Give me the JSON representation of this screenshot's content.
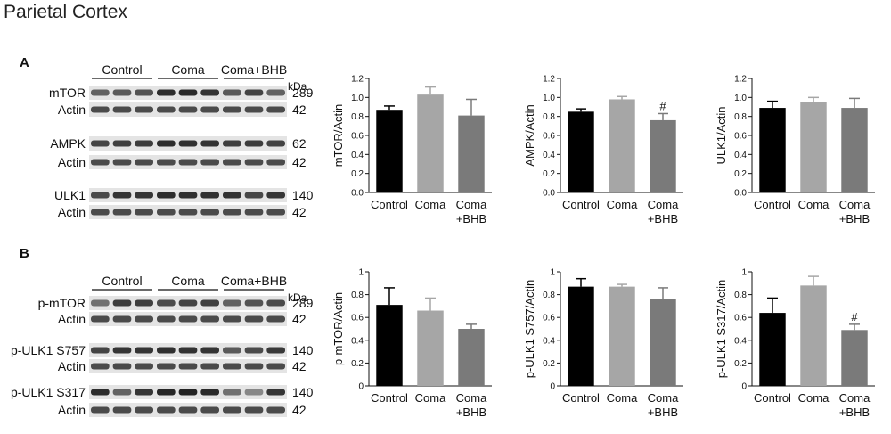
{
  "page_title": "Parietal Cortex",
  "panels": [
    {
      "letter": "A",
      "groups": [
        "Control",
        "Coma",
        "Coma+BHB"
      ],
      "kda_label": "kDa",
      "blots": [
        {
          "protein": "mTOR",
          "kda": "289",
          "loading": "Actin",
          "loading_kda": "42"
        },
        {
          "protein": "AMPK",
          "kda": "62",
          "loading": "Actin",
          "loading_kda": "42"
        },
        {
          "protein": "ULK1",
          "kda": "140",
          "loading": "Actin",
          "loading_kda": "42"
        }
      ]
    },
    {
      "letter": "B",
      "groups": [
        "Control",
        "Coma",
        "Coma+BHB"
      ],
      "kda_label": "kDa",
      "blots": [
        {
          "protein": "p-mTOR",
          "kda": "289",
          "loading": "Actin",
          "loading_kda": "42"
        },
        {
          "protein": "p-ULK1 S757",
          "kda": "140",
          "loading": "Actin",
          "loading_kda": "42"
        },
        {
          "protein": "p-ULK1 S317",
          "kda": "140",
          "loading": "Actin",
          "loading_kda": "42"
        }
      ]
    }
  ],
  "colors": {
    "control": "#000000",
    "coma": "#a6a6a6",
    "coma_bhb": "#7a7a7a"
  },
  "chart_data": [
    {
      "type": "bar",
      "ylabel": "mTOR/Actin",
      "categories": [
        "Control",
        "Coma",
        "Coma\n+BHB"
      ],
      "values": [
        0.87,
        1.03,
        0.81
      ],
      "errors": [
        0.04,
        0.08,
        0.17
      ],
      "ylim": [
        0,
        1.2
      ],
      "yticks": [
        "0.0",
        "0.2",
        "0.4",
        "0.6",
        "0.8",
        "1.0",
        "1.2"
      ],
      "annotations": [
        "",
        "",
        ""
      ]
    },
    {
      "type": "bar",
      "ylabel": "AMPK/Actin",
      "categories": [
        "Control",
        "Coma",
        "Coma\n+BHB"
      ],
      "values": [
        0.85,
        0.98,
        0.76
      ],
      "errors": [
        0.03,
        0.03,
        0.07
      ],
      "ylim": [
        0,
        1.2
      ],
      "yticks": [
        "0.0",
        "0.2",
        "0.4",
        "0.6",
        "0.8",
        "1.0",
        "1.2"
      ],
      "annotations": [
        "",
        "",
        "#"
      ]
    },
    {
      "type": "bar",
      "ylabel": "ULK1/Actin",
      "categories": [
        "Control",
        "Coma",
        "Coma\n+BHB"
      ],
      "values": [
        0.89,
        0.95,
        0.89
      ],
      "errors": [
        0.07,
        0.05,
        0.1
      ],
      "ylim": [
        0,
        1.2
      ],
      "yticks": [
        "0.0",
        "0.2",
        "0.4",
        "0.6",
        "0.8",
        "1.0",
        "1.2"
      ],
      "annotations": [
        "",
        "",
        ""
      ]
    },
    {
      "type": "bar",
      "ylabel": "p-mTOR/Actin",
      "categories": [
        "Control",
        "Coma",
        "Coma\n+BHB"
      ],
      "values": [
        0.71,
        0.66,
        0.5
      ],
      "errors": [
        0.15,
        0.11,
        0.04
      ],
      "ylim": [
        0,
        1.0
      ],
      "yticks": [
        "0",
        "0.2",
        "0.4",
        "0.6",
        "0.8",
        "1"
      ],
      "annotations": [
        "",
        "",
        ""
      ]
    },
    {
      "type": "bar",
      "ylabel": "p-ULK1 S757/Actin",
      "categories": [
        "Control",
        "Coma",
        "Coma\n+BHB"
      ],
      "values": [
        0.87,
        0.87,
        0.76
      ],
      "errors": [
        0.07,
        0.02,
        0.1
      ],
      "ylim": [
        0,
        1.0
      ],
      "yticks": [
        "0",
        "0.2",
        "0.4",
        "0.6",
        "0.8",
        "1"
      ],
      "annotations": [
        "",
        "",
        ""
      ]
    },
    {
      "type": "bar",
      "ylabel": "p-ULK1 S317/Actin",
      "categories": [
        "Control",
        "Coma",
        "Coma\n+BHB"
      ],
      "values": [
        0.64,
        0.88,
        0.49
      ],
      "errors": [
        0.13,
        0.08,
        0.05
      ],
      "ylim": [
        0,
        1.0
      ],
      "yticks": [
        "0",
        "0.2",
        "0.4",
        "0.6",
        "0.8",
        "1"
      ],
      "annotations": [
        "",
        "",
        "#"
      ]
    }
  ]
}
